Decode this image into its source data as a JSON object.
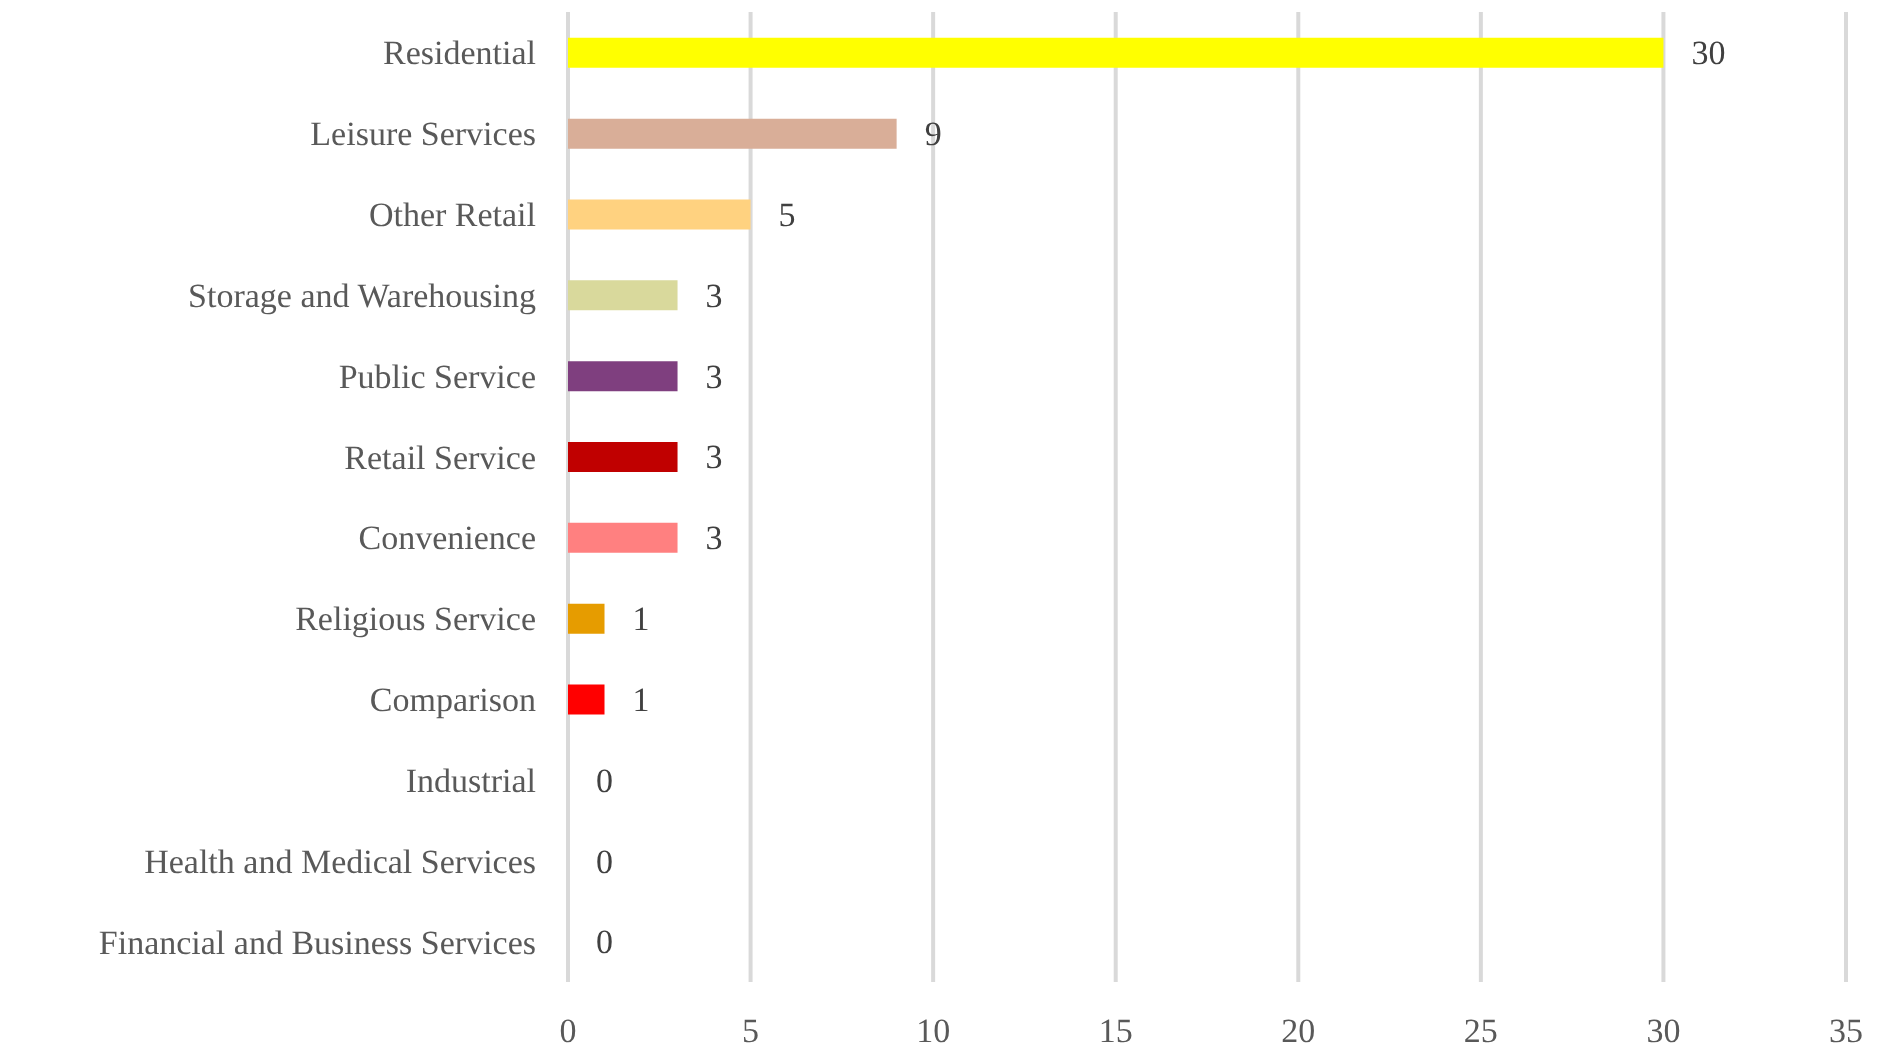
{
  "chart_data": {
    "type": "bar",
    "orientation": "horizontal",
    "categories": [
      "Residential",
      "Leisure Services",
      "Other Retail",
      "Storage and Warehousing",
      "Public Service",
      "Retail Service",
      "Convenience",
      "Religious Service",
      "Comparison",
      "Industrial",
      "Health and Medical Services",
      "Financial and Business Services"
    ],
    "values": [
      30,
      9,
      5,
      3,
      3,
      3,
      3,
      1,
      1,
      0,
      0,
      0
    ],
    "colors": [
      "#ffff00",
      "#d9ae98",
      "#ffd280",
      "#d9d99c",
      "#7f3f7f",
      "#c00000",
      "#ff8080",
      "#e69c00",
      "#ff0000",
      "#bfbfbf",
      "#bfbfbf",
      "#bfbfbf"
    ],
    "xlim": [
      0,
      35
    ],
    "xticks": [
      0,
      5,
      10,
      15,
      20,
      25,
      30,
      35
    ],
    "grid": "x",
    "data_labels": true
  }
}
